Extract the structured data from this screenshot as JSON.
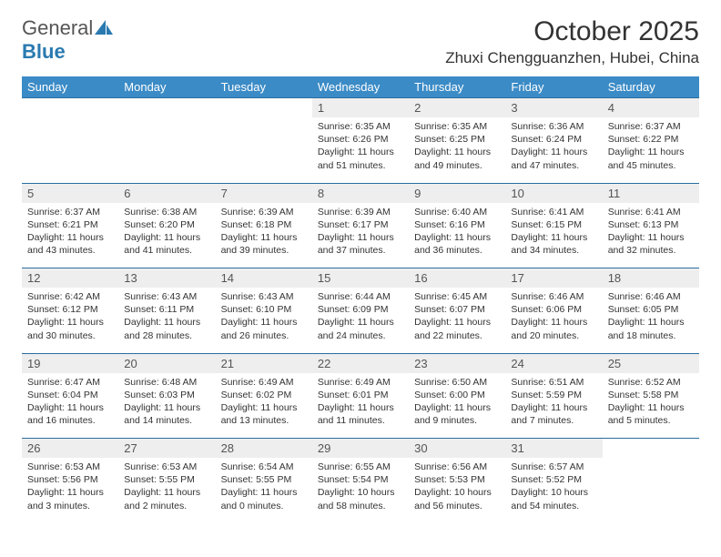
{
  "logo": {
    "word1": "General",
    "word2": "Blue"
  },
  "title": "October 2025",
  "location": "Zhuxi Chengguanzhen, Hubei, China",
  "colors": {
    "header_bg": "#3b8bc6",
    "header_text": "#ffffff",
    "daynum_bg": "#eeeeee",
    "rule": "#2a6ea0",
    "logo_gray": "#555555",
    "logo_blue": "#2a7ab0"
  },
  "weekdays": [
    "Sunday",
    "Monday",
    "Tuesday",
    "Wednesday",
    "Thursday",
    "Friday",
    "Saturday"
  ],
  "weeks": [
    [
      null,
      null,
      null,
      {
        "n": "1",
        "sr": "Sunrise: 6:35 AM",
        "ss": "Sunset: 6:26 PM",
        "dl1": "Daylight: 11 hours",
        "dl2": "and 51 minutes."
      },
      {
        "n": "2",
        "sr": "Sunrise: 6:35 AM",
        "ss": "Sunset: 6:25 PM",
        "dl1": "Daylight: 11 hours",
        "dl2": "and 49 minutes."
      },
      {
        "n": "3",
        "sr": "Sunrise: 6:36 AM",
        "ss": "Sunset: 6:24 PM",
        "dl1": "Daylight: 11 hours",
        "dl2": "and 47 minutes."
      },
      {
        "n": "4",
        "sr": "Sunrise: 6:37 AM",
        "ss": "Sunset: 6:22 PM",
        "dl1": "Daylight: 11 hours",
        "dl2": "and 45 minutes."
      }
    ],
    [
      {
        "n": "5",
        "sr": "Sunrise: 6:37 AM",
        "ss": "Sunset: 6:21 PM",
        "dl1": "Daylight: 11 hours",
        "dl2": "and 43 minutes."
      },
      {
        "n": "6",
        "sr": "Sunrise: 6:38 AM",
        "ss": "Sunset: 6:20 PM",
        "dl1": "Daylight: 11 hours",
        "dl2": "and 41 minutes."
      },
      {
        "n": "7",
        "sr": "Sunrise: 6:39 AM",
        "ss": "Sunset: 6:18 PM",
        "dl1": "Daylight: 11 hours",
        "dl2": "and 39 minutes."
      },
      {
        "n": "8",
        "sr": "Sunrise: 6:39 AM",
        "ss": "Sunset: 6:17 PM",
        "dl1": "Daylight: 11 hours",
        "dl2": "and 37 minutes."
      },
      {
        "n": "9",
        "sr": "Sunrise: 6:40 AM",
        "ss": "Sunset: 6:16 PM",
        "dl1": "Daylight: 11 hours",
        "dl2": "and 36 minutes."
      },
      {
        "n": "10",
        "sr": "Sunrise: 6:41 AM",
        "ss": "Sunset: 6:15 PM",
        "dl1": "Daylight: 11 hours",
        "dl2": "and 34 minutes."
      },
      {
        "n": "11",
        "sr": "Sunrise: 6:41 AM",
        "ss": "Sunset: 6:13 PM",
        "dl1": "Daylight: 11 hours",
        "dl2": "and 32 minutes."
      }
    ],
    [
      {
        "n": "12",
        "sr": "Sunrise: 6:42 AM",
        "ss": "Sunset: 6:12 PM",
        "dl1": "Daylight: 11 hours",
        "dl2": "and 30 minutes."
      },
      {
        "n": "13",
        "sr": "Sunrise: 6:43 AM",
        "ss": "Sunset: 6:11 PM",
        "dl1": "Daylight: 11 hours",
        "dl2": "and 28 minutes."
      },
      {
        "n": "14",
        "sr": "Sunrise: 6:43 AM",
        "ss": "Sunset: 6:10 PM",
        "dl1": "Daylight: 11 hours",
        "dl2": "and 26 minutes."
      },
      {
        "n": "15",
        "sr": "Sunrise: 6:44 AM",
        "ss": "Sunset: 6:09 PM",
        "dl1": "Daylight: 11 hours",
        "dl2": "and 24 minutes."
      },
      {
        "n": "16",
        "sr": "Sunrise: 6:45 AM",
        "ss": "Sunset: 6:07 PM",
        "dl1": "Daylight: 11 hours",
        "dl2": "and 22 minutes."
      },
      {
        "n": "17",
        "sr": "Sunrise: 6:46 AM",
        "ss": "Sunset: 6:06 PM",
        "dl1": "Daylight: 11 hours",
        "dl2": "and 20 minutes."
      },
      {
        "n": "18",
        "sr": "Sunrise: 6:46 AM",
        "ss": "Sunset: 6:05 PM",
        "dl1": "Daylight: 11 hours",
        "dl2": "and 18 minutes."
      }
    ],
    [
      {
        "n": "19",
        "sr": "Sunrise: 6:47 AM",
        "ss": "Sunset: 6:04 PM",
        "dl1": "Daylight: 11 hours",
        "dl2": "and 16 minutes."
      },
      {
        "n": "20",
        "sr": "Sunrise: 6:48 AM",
        "ss": "Sunset: 6:03 PM",
        "dl1": "Daylight: 11 hours",
        "dl2": "and 14 minutes."
      },
      {
        "n": "21",
        "sr": "Sunrise: 6:49 AM",
        "ss": "Sunset: 6:02 PM",
        "dl1": "Daylight: 11 hours",
        "dl2": "and 13 minutes."
      },
      {
        "n": "22",
        "sr": "Sunrise: 6:49 AM",
        "ss": "Sunset: 6:01 PM",
        "dl1": "Daylight: 11 hours",
        "dl2": "and 11 minutes."
      },
      {
        "n": "23",
        "sr": "Sunrise: 6:50 AM",
        "ss": "Sunset: 6:00 PM",
        "dl1": "Daylight: 11 hours",
        "dl2": "and 9 minutes."
      },
      {
        "n": "24",
        "sr": "Sunrise: 6:51 AM",
        "ss": "Sunset: 5:59 PM",
        "dl1": "Daylight: 11 hours",
        "dl2": "and 7 minutes."
      },
      {
        "n": "25",
        "sr": "Sunrise: 6:52 AM",
        "ss": "Sunset: 5:58 PM",
        "dl1": "Daylight: 11 hours",
        "dl2": "and 5 minutes."
      }
    ],
    [
      {
        "n": "26",
        "sr": "Sunrise: 6:53 AM",
        "ss": "Sunset: 5:56 PM",
        "dl1": "Daylight: 11 hours",
        "dl2": "and 3 minutes."
      },
      {
        "n": "27",
        "sr": "Sunrise: 6:53 AM",
        "ss": "Sunset: 5:55 PM",
        "dl1": "Daylight: 11 hours",
        "dl2": "and 2 minutes."
      },
      {
        "n": "28",
        "sr": "Sunrise: 6:54 AM",
        "ss": "Sunset: 5:55 PM",
        "dl1": "Daylight: 11 hours",
        "dl2": "and 0 minutes."
      },
      {
        "n": "29",
        "sr": "Sunrise: 6:55 AM",
        "ss": "Sunset: 5:54 PM",
        "dl1": "Daylight: 10 hours",
        "dl2": "and 58 minutes."
      },
      {
        "n": "30",
        "sr": "Sunrise: 6:56 AM",
        "ss": "Sunset: 5:53 PM",
        "dl1": "Daylight: 10 hours",
        "dl2": "and 56 minutes."
      },
      {
        "n": "31",
        "sr": "Sunrise: 6:57 AM",
        "ss": "Sunset: 5:52 PM",
        "dl1": "Daylight: 10 hours",
        "dl2": "and 54 minutes."
      },
      null
    ]
  ]
}
